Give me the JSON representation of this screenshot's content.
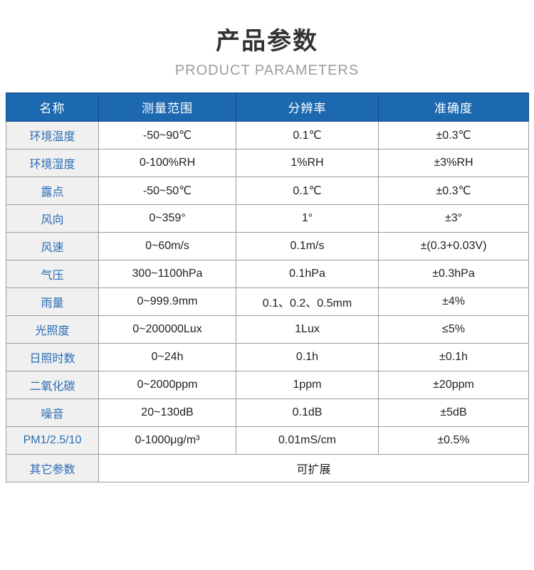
{
  "header": {
    "title": "产品参数",
    "subtitle": "PRODUCT PARAMETERS"
  },
  "table": {
    "columns": [
      "名称",
      "测量范围",
      "分辨率",
      "准确度"
    ],
    "rows": [
      {
        "name": "环境温度",
        "range": "-50~90℃",
        "resolution": "0.1℃",
        "accuracy": "±0.3℃"
      },
      {
        "name": "环境湿度",
        "range": "0-100%RH",
        "resolution": "1%RH",
        "accuracy": "±3%RH"
      },
      {
        "name": "露点",
        "range": "-50~50℃",
        "resolution": "0.1℃",
        "accuracy": "±0.3℃"
      },
      {
        "name": "风向",
        "range": "0~359°",
        "resolution": "1°",
        "accuracy": "±3°"
      },
      {
        "name": "风速",
        "range": "0~60m/s",
        "resolution": "0.1m/s",
        "accuracy": "±(0.3+0.03V)"
      },
      {
        "name": "气压",
        "range": "300~1100hPa",
        "resolution": "0.1hPa",
        "accuracy": "±0.3hPa"
      },
      {
        "name": "雨量",
        "range": "0~999.9mm",
        "resolution": "0.1、0.2、0.5mm",
        "accuracy": "±4%"
      },
      {
        "name": "光照度",
        "range": "0~200000Lux",
        "resolution": "1Lux",
        "accuracy": "≤5%"
      },
      {
        "name": "日照时数",
        "range": "0~24h",
        "resolution": "0.1h",
        "accuracy": "±0.1h"
      },
      {
        "name": "二氧化碳",
        "range": "0~2000ppm",
        "resolution": "1ppm",
        "accuracy": "±20ppm"
      },
      {
        "name": "噪音",
        "range": "20~130dB",
        "resolution": "0.1dB",
        "accuracy": "±5dB"
      },
      {
        "name": "PM1/2.5/10",
        "range": "0-1000μg/m³",
        "resolution": "0.01mS/cm",
        "accuracy": "±0.5%"
      },
      {
        "name": "其它参数",
        "merged": "可扩展"
      }
    ]
  },
  "colors": {
    "header_bg": "#1c69b0",
    "header_border": "#0f4a80",
    "label_bg": "#f0f0f0",
    "label_text": "#2b6cb5",
    "grid": "#9b9b9b"
  }
}
